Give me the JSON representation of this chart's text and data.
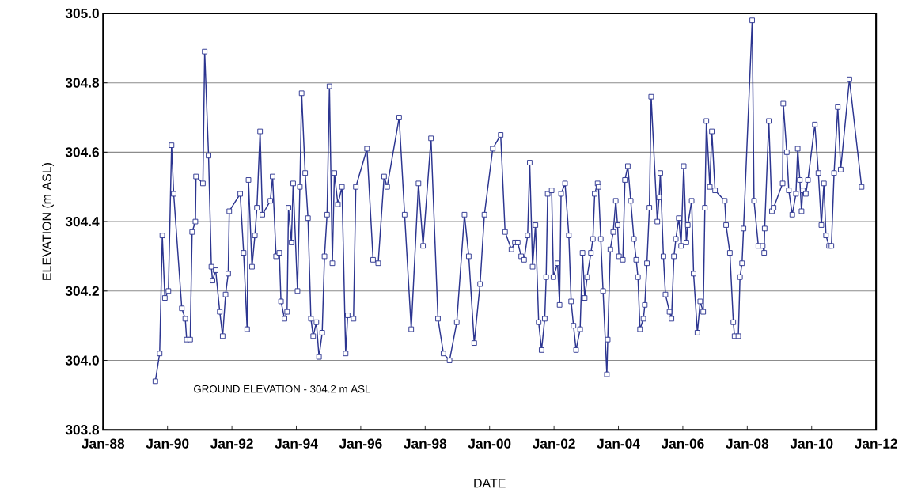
{
  "chart_data": {
    "type": "line",
    "xlabel": "DATE",
    "ylabel": "ELEVATION (m ASL)",
    "annotations": [
      "GROUND ELEVATION - 304.2 m ASL"
    ],
    "xlim": [
      "1988-01-01",
      "2012-01-01"
    ],
    "xticks": [
      {
        "value": "1988-01-01",
        "label": "Jan-88"
      },
      {
        "value": "1990-01-01",
        "label": "Jan-90"
      },
      {
        "value": "1992-01-01",
        "label": "Jan-92"
      },
      {
        "value": "1994-01-01",
        "label": "Jan-94"
      },
      {
        "value": "1996-01-01",
        "label": "Jan-96"
      },
      {
        "value": "1998-01-01",
        "label": "Jan-98"
      },
      {
        "value": "2000-01-01",
        "label": "Jan-00"
      },
      {
        "value": "2002-01-01",
        "label": "Jan-02"
      },
      {
        "value": "2004-01-01",
        "label": "Jan-04"
      },
      {
        "value": "2006-01-01",
        "label": "Jan-06"
      },
      {
        "value": "2008-01-01",
        "label": "Jan-08"
      },
      {
        "value": "2010-01-01",
        "label": "Jan-10"
      },
      {
        "value": "2012-01-01",
        "label": "Jan-12"
      }
    ],
    "ylim": [
      303.8,
      305.0
    ],
    "yticks": [
      {
        "value": 303.8,
        "label": "303.8"
      },
      {
        "value": 304.0,
        "label": "304.0"
      },
      {
        "value": 304.2,
        "label": "304.2"
      },
      {
        "value": 304.4,
        "label": "304.4"
      },
      {
        "value": 304.6,
        "label": "304.6"
      },
      {
        "value": 304.8,
        "label": "304.8"
      },
      {
        "value": 305.0,
        "label": "305.0"
      }
    ],
    "grid": "y",
    "marker": "square",
    "line_style": "solid",
    "series": [
      {
        "color": "#2c3590",
        "x": [
          "1989-08-16",
          "1989-10-04",
          "1989-11-03",
          "1989-12-02",
          "1990-01-11",
          "1990-02-16",
          "1990-03-12",
          "1990-06-12",
          "1990-07-21",
          "1990-08-06",
          "1990-09-15",
          "1990-10-07",
          "1990-11-13",
          "1990-11-20",
          "1991-02-06",
          "1991-02-26",
          "1991-04-11",
          "1991-05-13",
          "1991-05-26",
          "1991-07-01",
          "1991-08-16",
          "1991-09-18",
          "1991-10-21",
          "1991-11-20",
          "1991-12-02",
          "1992-04-04",
          "1992-05-13",
          "1992-06-22",
          "1992-07-07",
          "1992-08-16",
          "1992-09-18",
          "1992-10-11",
          "1992-11-16",
          "1992-12-12",
          "1993-03-12",
          "1993-04-07",
          "1993-05-16",
          "1993-06-22",
          "1993-07-11",
          "1993-08-20",
          "1993-09-18",
          "1993-10-04",
          "1993-11-06",
          "1993-11-26",
          "1994-01-14",
          "1994-02-10",
          "1994-03-02",
          "1994-04-11",
          "1994-05-13",
          "1994-06-15",
          "1994-07-11",
          "1994-08-16",
          "1994-09-15",
          "1994-10-21",
          "1994-11-16",
          "1994-12-15",
          "1995-01-11",
          "1995-02-13",
          "1995-03-08",
          "1995-04-17",
          "1995-06-02",
          "1995-07-14",
          "1995-08-06",
          "1995-10-11",
          "1995-11-06",
          "1996-03-12",
          "1996-05-20",
          "1996-07-17",
          "1996-09-22",
          "1996-10-27",
          "1997-03-12",
          "1997-05-13",
          "1997-07-27",
          "1997-10-17",
          "1997-12-08",
          "1998-03-08",
          "1998-05-26",
          "1998-07-27",
          "1998-10-04",
          "1998-12-25",
          "1999-03-22",
          "1999-05-10",
          "1999-07-11",
          "1999-09-15",
          "1999-11-03",
          "2000-02-06",
          "2000-05-06",
          "2000-06-25",
          "2000-09-05",
          "2000-10-14",
          "2000-11-16",
          "2000-12-25",
          "2001-01-27",
          "2001-03-08",
          "2001-04-01",
          "2001-05-03",
          "2001-06-05",
          "2001-07-11",
          "2001-08-13",
          "2001-09-18",
          "2001-10-04",
          "2001-10-21",
          "2001-12-05",
          "2001-12-25",
          "2002-02-10",
          "2002-03-05",
          "2002-03-22",
          "2002-05-06",
          "2002-06-18",
          "2002-07-14",
          "2002-08-10",
          "2002-09-08",
          "2002-10-24",
          "2002-11-20",
          "2002-12-15",
          "2003-01-11",
          "2003-02-23",
          "2003-03-18",
          "2003-04-07",
          "2003-05-10",
          "2003-05-20",
          "2003-06-15",
          "2003-07-11",
          "2003-08-23",
          "2003-09-02",
          "2003-10-01",
          "2003-11-03",
          "2003-12-02",
          "2003-12-22",
          "2004-01-07",
          "2004-02-20",
          "2004-03-15",
          "2004-04-17",
          "2004-05-20",
          "2004-06-25",
          "2004-07-21",
          "2004-08-10",
          "2004-09-02",
          "2004-10-11",
          "2004-10-27",
          "2004-11-20",
          "2004-12-18",
          "2005-01-07",
          "2005-03-18",
          "2005-04-07",
          "2005-04-21",
          "2005-05-26",
          "2005-06-18",
          "2005-08-03",
          "2005-08-26",
          "2005-09-22",
          "2005-10-14",
          "2005-11-16",
          "2005-12-12",
          "2006-01-11",
          "2006-02-10",
          "2006-02-26",
          "2006-04-11",
          "2006-05-03",
          "2006-06-15",
          "2006-07-17",
          "2006-08-20",
          "2006-09-08",
          "2006-09-25",
          "2006-11-03",
          "2006-11-26",
          "2007-01-01",
          "2007-04-21",
          "2007-05-06",
          "2007-06-18",
          "2007-07-27",
          "2007-08-10",
          "2007-09-22",
          "2007-10-11",
          "2007-11-03",
          "2007-11-20",
          "2008-02-26",
          "2008-03-18",
          "2008-05-06",
          "2008-06-25",
          "2008-07-11",
          "2008-07-17",
          "2008-09-02",
          "2008-10-07",
          "2008-10-27",
          "2009-02-06",
          "2009-02-13",
          "2009-03-25",
          "2009-04-17",
          "2009-05-26",
          "2009-07-07",
          "2009-07-27",
          "2009-08-20",
          "2009-09-08",
          "2009-09-22",
          "2009-10-27",
          "2009-11-20",
          "2010-02-06",
          "2010-03-18",
          "2010-04-21",
          "2010-05-20",
          "2010-06-12",
          "2010-07-17",
          "2010-08-13",
          "2010-09-12",
          "2010-10-24",
          "2010-11-26",
          "2011-03-05",
          "2011-07-21"
        ],
        "values": [
          303.94,
          304.02,
          304.36,
          304.18,
          304.2,
          304.62,
          304.48,
          304.15,
          304.12,
          304.06,
          304.06,
          304.37,
          304.4,
          304.53,
          304.51,
          304.89,
          304.59,
          304.27,
          304.23,
          304.26,
          304.14,
          304.07,
          304.19,
          304.25,
          304.43,
          304.48,
          304.31,
          304.09,
          304.52,
          304.27,
          304.36,
          304.44,
          304.66,
          304.42,
          304.46,
          304.53,
          304.3,
          304.31,
          304.17,
          304.12,
          304.14,
          304.44,
          304.34,
          304.51,
          304.2,
          304.5,
          304.77,
          304.54,
          304.41,
          304.12,
          304.07,
          304.11,
          304.01,
          304.08,
          304.3,
          304.42,
          304.79,
          304.28,
          304.54,
          304.45,
          304.5,
          304.02,
          304.13,
          304.12,
          304.5,
          304.61,
          304.29,
          304.28,
          304.53,
          304.5,
          304.7,
          304.42,
          304.09,
          304.51,
          304.33,
          304.64,
          304.12,
          304.02,
          304.0,
          304.11,
          304.42,
          304.3,
          304.05,
          304.22,
          304.42,
          304.61,
          304.65,
          304.37,
          304.32,
          304.34,
          304.34,
          304.3,
          304.29,
          304.36,
          304.57,
          304.27,
          304.39,
          304.11,
          304.03,
          304.12,
          304.24,
          304.48,
          304.49,
          304.24,
          304.28,
          304.16,
          304.48,
          304.51,
          304.36,
          304.17,
          304.1,
          304.03,
          304.09,
          304.31,
          304.18,
          304.24,
          304.31,
          304.35,
          304.48,
          304.51,
          304.5,
          304.35,
          304.2,
          303.96,
          304.06,
          304.32,
          304.37,
          304.46,
          304.39,
          304.3,
          304.29,
          304.52,
          304.56,
          304.46,
          304.35,
          304.29,
          304.24,
          304.09,
          304.12,
          304.16,
          304.28,
          304.44,
          304.76,
          304.4,
          304.47,
          304.54,
          304.3,
          304.19,
          304.14,
          304.12,
          304.3,
          304.35,
          304.41,
          304.33,
          304.56,
          304.34,
          304.39,
          304.46,
          304.25,
          304.08,
          304.17,
          304.14,
          304.44,
          304.69,
          304.5,
          304.66,
          304.49,
          304.46,
          304.39,
          304.31,
          304.11,
          304.07,
          304.07,
          304.24,
          304.28,
          304.38,
          304.98,
          304.46,
          304.33,
          304.33,
          304.31,
          304.38,
          304.69,
          304.43,
          304.44,
          304.51,
          304.74,
          304.6,
          304.49,
          304.42,
          304.48,
          304.61,
          304.52,
          304.43,
          304.49,
          304.48,
          304.52,
          304.68,
          304.54,
          304.39,
          304.51,
          304.36,
          304.33,
          304.33,
          304.54,
          304.73,
          304.55,
          304.81,
          304.5
        ]
      }
    ]
  }
}
